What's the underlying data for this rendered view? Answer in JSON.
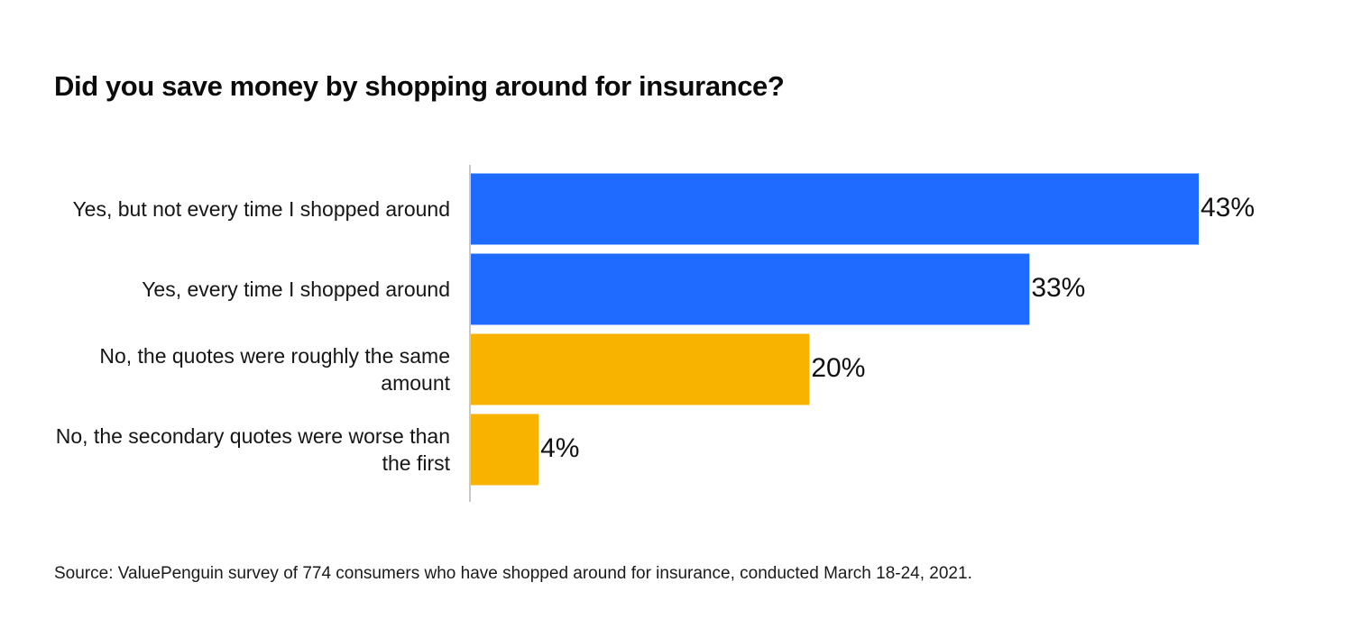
{
  "chart_data": {
    "type": "bar",
    "orientation": "horizontal",
    "title": "Did you save money by shopping around for insurance?",
    "categories": [
      "Yes, but not every time I shopped around",
      "Yes, every time I shopped around",
      "No, the quotes were roughly the same amount",
      "No, the secondary quotes were worse than the first"
    ],
    "values": [
      43,
      33,
      20,
      4
    ],
    "value_labels": [
      "43%",
      "33%",
      "20%",
      "4%"
    ],
    "bar_colors": [
      "#1f6bff",
      "#1f6bff",
      "#f7b300",
      "#f7b300"
    ],
    "xlim": [
      0,
      43
    ],
    "grid": false,
    "axis_line_color": "#c8c8c8"
  },
  "source": "Source: ValuePenguin survey of 774 consumers who have shopped around for insurance, conducted March 18-24, 2021."
}
